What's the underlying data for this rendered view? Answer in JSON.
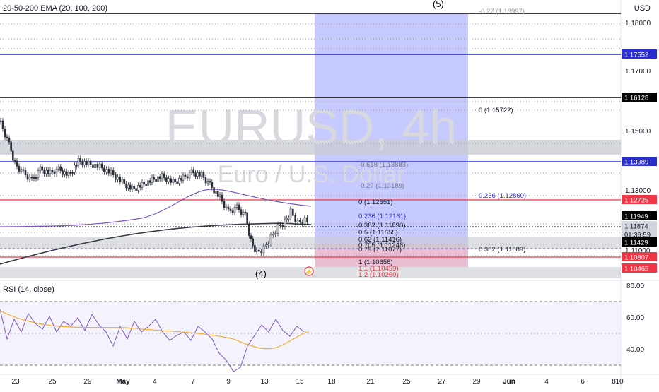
{
  "symbol_watermark": "EURUSD, 4h",
  "description_watermark": "Euro / U.S. Dollar",
  "indicator_label": "20-50-200 EMA (20, 100, 200)",
  "currency_button": "USD",
  "rsi_label": "RSI (14, close)",
  "wave_labels": {
    "top": "(5)",
    "bottom": "(4)"
  },
  "price_axis_ticks": [
    "1.18000",
    "1.17000",
    "1.15000",
    "1.13000",
    "1.11000"
  ],
  "price_tags": [
    {
      "text": "1.17552",
      "color": "#2a2ed1",
      "fg": "#ffffff"
    },
    {
      "text": "1.16128",
      "color": "#000000",
      "fg": "#ffffff"
    },
    {
      "text": "1.13989",
      "color": "#2a2ed1",
      "fg": "#ffffff"
    },
    {
      "text": "1.12725",
      "color": "#f23645",
      "fg": "#ffffff"
    },
    {
      "text": "1.11949",
      "color": "#000000",
      "fg": "#ffffff"
    },
    {
      "text": "1.11874",
      "color": "#d1d4dc",
      "fg": "#131722"
    },
    {
      "text": "01:36:59",
      "color": "#d1d4dc",
      "fg": "#131722"
    },
    {
      "text": "1.11429",
      "color": "#000000",
      "fg": "#ffffff"
    },
    {
      "text": "1.10807",
      "color": "#f23645",
      "fg": "#ffffff"
    },
    {
      "text": "1.10465",
      "color": "#f23645",
      "fg": "#ffffff"
    }
  ],
  "fib_labels": [
    {
      "text": "-0.27 (1.18997)",
      "color": "#9598a1"
    },
    {
      "text": "0 (1.15722)",
      "color": "#131722"
    },
    {
      "text": "-0.618 (1.13883)",
      "color": "#787b86"
    },
    {
      "text": "-0.27 (1.13189)",
      "color": "#787b86"
    },
    {
      "text": "0.236 (1.12860)",
      "color": "#2a2ed1"
    },
    {
      "text": "0 (1.12651)",
      "color": "#131722"
    },
    {
      "text": "0.236 (1.12181)",
      "color": "#2a2ed1"
    },
    {
      "text": "0.382 (1.11890)",
      "color": "#131722"
    },
    {
      "text": "0.5 (1.11655)",
      "color": "#131722"
    },
    {
      "text": "0.62 (1.11416)",
      "color": "#131722"
    },
    {
      "text": "0.705 (1.11246)",
      "color": "#131722"
    },
    {
      "text": "0.79 (1.11077)",
      "color": "#131722"
    },
    {
      "text": "0.382 (1.11089)",
      "color": "#131722"
    },
    {
      "text": "1 (1.10658)",
      "color": "#131722"
    },
    {
      "text": "1.1 (1.10459)",
      "color": "#f23645"
    },
    {
      "text": "1.2 (1.10260)",
      "color": "#f23645"
    }
  ],
  "rsi_axis_ticks": [
    "80.00",
    "60.00",
    "40.00"
  ],
  "time_axis": [
    "23",
    "25",
    "29",
    "May",
    "4",
    "7",
    "9",
    "13",
    "15",
    "18",
    "21",
    "25",
    "27",
    "29",
    "Jun",
    "4",
    "6",
    "8",
    "10"
  ],
  "colors": {
    "ema200": "#363a45",
    "ema100": "#7e57c2",
    "rsi_line": "#7e57c2",
    "rsi_ma": "#f7a21b",
    "projection": "#b3b8ff",
    "candle": "#2a2e39"
  }
}
